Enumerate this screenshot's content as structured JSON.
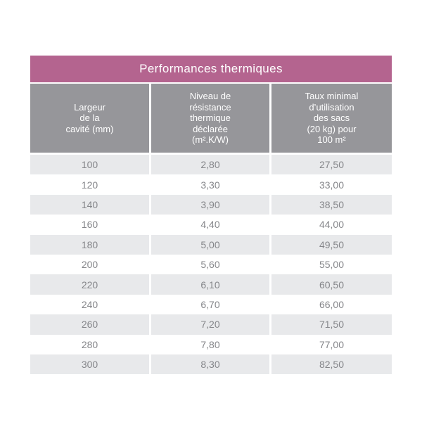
{
  "colors": {
    "title_bg": "#b4648f",
    "header_bg": "#96969a",
    "row_alt_bg": "#e8e9eb",
    "row_bg": "#ffffff",
    "header_text": "#ffffff",
    "cell_text": "#85868a"
  },
  "table": {
    "title": "Performances thermiques",
    "columns": [
      "Largeur\nde la\ncavité (mm)",
      "Niveau de\nrésistance\nthermique\ndéclarée\n(m².K/W)",
      "Taux minimal\nd’utilisation\ndes sacs\n(20 kg) pour\n100 m²"
    ],
    "rows": [
      [
        "100",
        "2,80",
        "27,50"
      ],
      [
        "120",
        "3,30",
        "33,00"
      ],
      [
        "140",
        "3,90",
        "38,50"
      ],
      [
        "160",
        "4,40",
        "44,00"
      ],
      [
        "180",
        "5,00",
        "49,50"
      ],
      [
        "200",
        "5,60",
        "55,00"
      ],
      [
        "220",
        "6,10",
        "60,50"
      ],
      [
        "240",
        "6,70",
        "66,00"
      ],
      [
        "260",
        "7,20",
        "71,50"
      ],
      [
        "280",
        "7,80",
        "77,00"
      ],
      [
        "300",
        "8,30",
        "82,50"
      ]
    ]
  },
  "chart_data": {
    "type": "table",
    "title": "Performances thermiques",
    "columns": [
      "Largeur de la cavité (mm)",
      "Niveau de résistance thermique déclarée (m².K/W)",
      "Taux minimal d’utilisation des sacs (20 kg) pour 100 m²"
    ],
    "rows": [
      [
        100,
        "2,80",
        "27,50"
      ],
      [
        120,
        "3,30",
        "33,00"
      ],
      [
        140,
        "3,90",
        "38,50"
      ],
      [
        160,
        "4,40",
        "44,00"
      ],
      [
        180,
        "5,00",
        "49,50"
      ],
      [
        200,
        "5,60",
        "55,00"
      ],
      [
        220,
        "6,10",
        "60,50"
      ],
      [
        240,
        "6,70",
        "66,00"
      ],
      [
        260,
        "7,20",
        "71,50"
      ],
      [
        280,
        "7,80",
        "77,00"
      ],
      [
        300,
        "8,30",
        "82,50"
      ]
    ]
  }
}
